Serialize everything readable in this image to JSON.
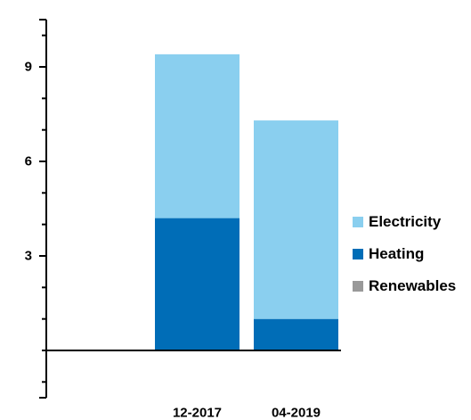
{
  "chart_data": {
    "type": "bar",
    "stacked": true,
    "categories": [
      "12-2017",
      "04-2019"
    ],
    "series": [
      {
        "name": "Heating",
        "color": "#006db7",
        "values": [
          4.2,
          1.0
        ]
      },
      {
        "name": "Electricity",
        "color": "#8acfef",
        "values": [
          5.2,
          6.3
        ]
      },
      {
        "name": "Renewables",
        "color": "#999999",
        "values": [
          0,
          0
        ]
      }
    ],
    "legend_order": [
      "Electricity",
      "Heating",
      "Renewables"
    ],
    "yticks": [
      3,
      6,
      9
    ],
    "yticks_labels": [
      "3",
      "6",
      "9"
    ],
    "ylim": [
      -1.5,
      10.5
    ],
    "grid": false,
    "legend_position": "right"
  }
}
